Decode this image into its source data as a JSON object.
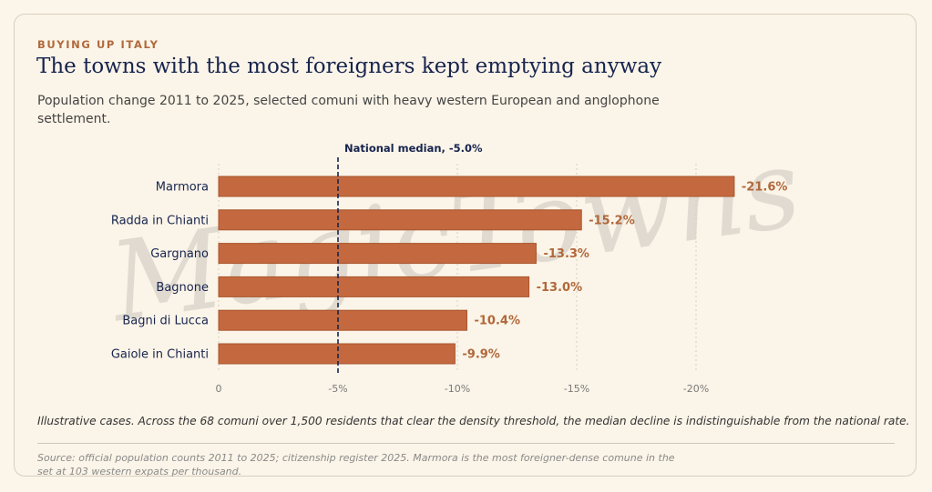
{
  "header": {
    "eyebrow": "BUYING UP ITALY",
    "title": "The towns with the most foreigners kept emptying anyway",
    "subtitle": "Population change 2011 to 2025, selected comuni with heavy western European and anglophone settlement."
  },
  "watermark": "MagicTowns",
  "chart_data": {
    "type": "bar",
    "orientation": "horizontal",
    "categories": [
      "Marmora",
      "Radda in Chianti",
      "Gargnano",
      "Bagnone",
      "Bagni di Lucca",
      "Gaiole in Chianti"
    ],
    "values": [
      -21.6,
      -15.2,
      -13.3,
      -13.0,
      -10.4,
      -9.9
    ],
    "value_labels": [
      "-21.6%",
      "-15.2%",
      "-13.3%",
      "-13.0%",
      "-10.4%",
      "-9.9%"
    ],
    "x_ticks": [
      0,
      -5,
      -10,
      -15,
      -20
    ],
    "x_tick_labels": [
      "0",
      "-5%",
      "-10%",
      "-15%",
      "-20%"
    ],
    "xlim": [
      0,
      -22.5
    ],
    "grid": "vertical dotted",
    "reference_line": {
      "value": -5.0,
      "label": "National median, -5.0%"
    },
    "colors": {
      "bar": "#c4693f",
      "bar_stroke": "#a9542c",
      "value_label": "#b0683a",
      "category_label": "#16244e",
      "reference": "#16244e",
      "tick": "#7a7a7a"
    }
  },
  "footer": {
    "note": "Illustrative cases. Across the 68 comuni over 1,500 residents that clear the density threshold, the median decline is indistinguishable from the national rate.",
    "source": "Source: official population counts 2011 to 2025; citizenship register 2025. Marmora is the most foreigner-dense comune in the set at 103 western expats per thousand."
  }
}
